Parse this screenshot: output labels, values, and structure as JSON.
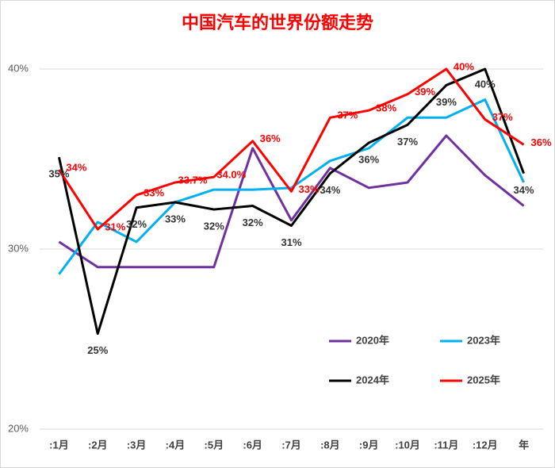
{
  "chart_data": {
    "type": "line",
    "title": "中国汽车的世界份额走势",
    "categories": [
      ":1月",
      ":2月",
      ":3月",
      ":4月",
      ":5月",
      ":6月",
      ":7月",
      ":8月",
      ":9月",
      ":10月",
      ":11月",
      ":12月",
      "年"
    ],
    "ylim": [
      20,
      40
    ],
    "yticks": [
      {
        "value": 20,
        "label": "20%"
      },
      {
        "value": 30,
        "label": "30%"
      },
      {
        "value": 40,
        "label": "40%"
      }
    ],
    "grid": true,
    "series": [
      {
        "name": "2020年",
        "color": "#7030a0",
        "values": [
          30.4,
          29.0,
          29.0,
          29.0,
          29.0,
          35.6,
          31.6,
          34.5,
          33.4,
          33.7,
          36.3,
          34.1,
          32.4
        ]
      },
      {
        "name": "2023年",
        "color": "#00b0f0",
        "values": [
          28.6,
          31.5,
          30.4,
          32.6,
          33.3,
          33.3,
          33.4,
          34.9,
          35.6,
          37.3,
          37.3,
          38.3,
          33.7
        ]
      },
      {
        "name": "2024年",
        "color": "#000000",
        "values": [
          35.1,
          25.3,
          32.3,
          32.6,
          32.2,
          32.4,
          31.3,
          34.2,
          35.9,
          36.9,
          39.1,
          40.0,
          34.2
        ],
        "value_labels": [
          "35%",
          "25%",
          "32%",
          "33%",
          "32%",
          "32%",
          "31%",
          "34%",
          "36%",
          "37%",
          "39%",
          "40%",
          "34%"
        ]
      },
      {
        "name": "2025年",
        "color": "#ff0000",
        "values": [
          34.4,
          31.1,
          33.0,
          33.7,
          34.0,
          36.0,
          33.2,
          37.3,
          37.7,
          38.6,
          40.0,
          37.2,
          35.8
        ],
        "value_labels": [
          "34%",
          "31%",
          "33%",
          "33.7%",
          "34.0%",
          "36%",
          "33%",
          "37%",
          "38%",
          "39%",
          "40%",
          "37%",
          "36%"
        ]
      }
    ]
  }
}
